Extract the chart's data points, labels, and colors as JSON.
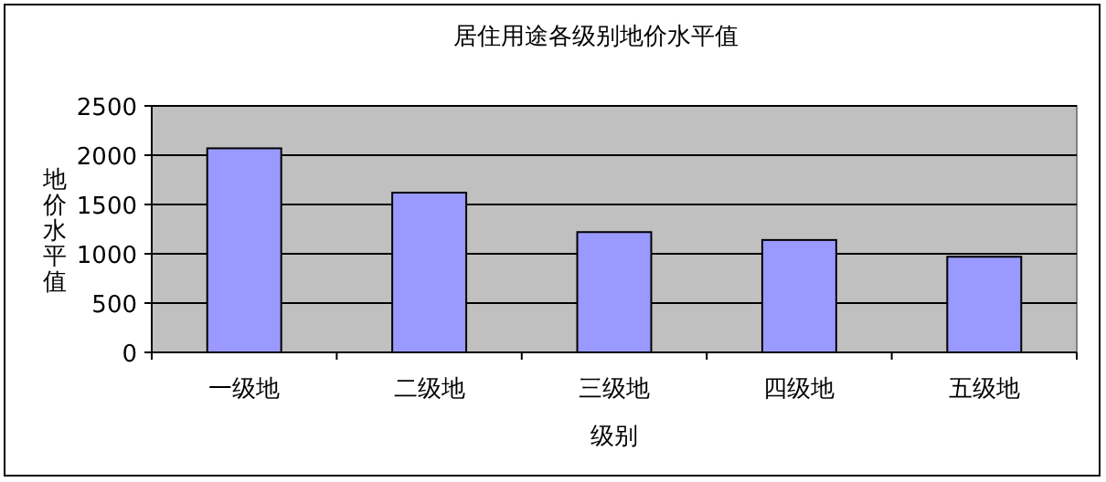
{
  "chart_data": {
    "type": "bar",
    "title": "居住用途各级别地价水平值",
    "xlabel": "级别",
    "ylabel": "地价水平值",
    "categories": [
      "一级地",
      "二级地",
      "三级地",
      "四级地",
      "五级地"
    ],
    "values": [
      2070,
      1620,
      1220,
      1140,
      970
    ],
    "color": "#9999ff",
    "ylim": [
      0,
      2500
    ],
    "yticks": [
      0,
      500,
      1000,
      1500,
      2000,
      2500
    ],
    "grid": "y"
  }
}
